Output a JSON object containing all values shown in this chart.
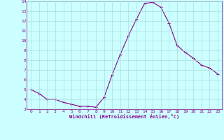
{
  "x": [
    0,
    1,
    2,
    3,
    4,
    5,
    6,
    7,
    8,
    9,
    10,
    11,
    12,
    13,
    14,
    15,
    16,
    17,
    18,
    19,
    20,
    21,
    22,
    23
  ],
  "y": [
    5.0,
    4.6,
    4.0,
    4.0,
    3.7,
    3.5,
    3.3,
    3.3,
    3.2,
    4.2,
    6.5,
    8.6,
    10.5,
    12.2,
    13.8,
    13.9,
    13.4,
    11.8,
    9.5,
    8.8,
    8.2,
    7.5,
    7.2,
    6.6
  ],
  "line_color": "#880088",
  "marker_color": "#880088",
  "bg_color": "#ccffff",
  "grid_color": "#aadddd",
  "xlabel": "Windchill (Refroidissement éolien,°C)",
  "xlabel_color": "#880088",
  "tick_color": "#880088",
  "ylim": [
    3,
    14
  ],
  "yticks": [
    3,
    4,
    5,
    6,
    7,
    8,
    9,
    10,
    11,
    12,
    13,
    14
  ],
  "xticks": [
    0,
    1,
    2,
    3,
    4,
    5,
    6,
    7,
    8,
    9,
    10,
    11,
    12,
    13,
    14,
    15,
    16,
    17,
    18,
    19,
    20,
    21,
    22,
    23
  ],
  "figsize": [
    3.2,
    2.0
  ],
  "dpi": 100
}
